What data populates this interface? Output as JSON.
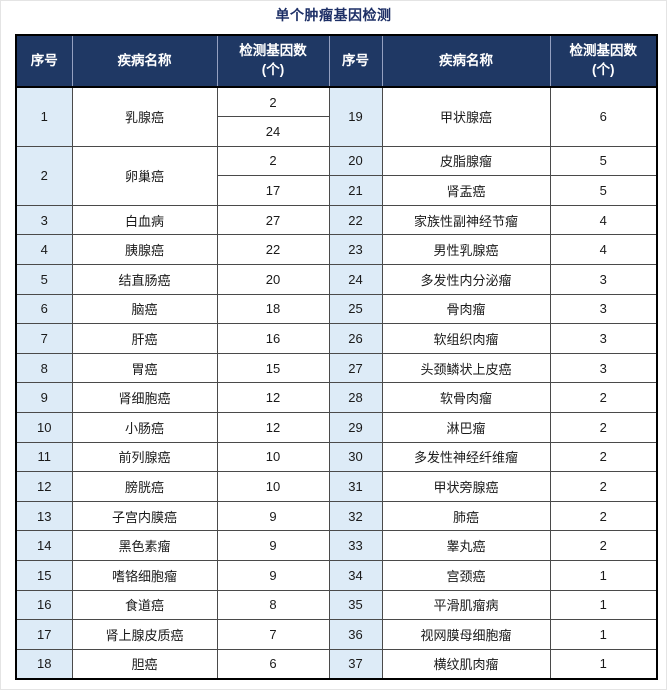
{
  "title": "单个肿瘤基因检测",
  "colors": {
    "page_bg": "#FFFFFF",
    "title_color": "#1D2F66",
    "header_bg": "#1F3864",
    "header_text": "#FFFFFF",
    "header_divider": "#94A0C0",
    "index_col_bg": "#DDEBF7",
    "grid_line": "#4A4A4A",
    "outer_border": "#000000",
    "body_text": "#1A1A1A"
  },
  "table": {
    "headers": {
      "index": "序号",
      "disease": "疾病名称",
      "gene_count": "检测基因数\n(个)"
    },
    "left_rows": [
      {
        "no": "1",
        "disease": "乳腺癌",
        "counts": [
          "2",
          "24"
        ]
      },
      {
        "no": "2",
        "disease": "卵巢癌",
        "counts": [
          "2",
          "17"
        ]
      },
      {
        "no": "3",
        "disease": "白血病",
        "counts": [
          "27"
        ]
      },
      {
        "no": "4",
        "disease": "胰腺癌",
        "counts": [
          "22"
        ]
      },
      {
        "no": "5",
        "disease": "结直肠癌",
        "counts": [
          "20"
        ]
      },
      {
        "no": "6",
        "disease": "脑癌",
        "counts": [
          "18"
        ]
      },
      {
        "no": "7",
        "disease": "肝癌",
        "counts": [
          "16"
        ]
      },
      {
        "no": "8",
        "disease": "胃癌",
        "counts": [
          "15"
        ]
      },
      {
        "no": "9",
        "disease": "肾细胞癌",
        "counts": [
          "12"
        ]
      },
      {
        "no": "10",
        "disease": "小肠癌",
        "counts": [
          "12"
        ]
      },
      {
        "no": "11",
        "disease": "前列腺癌",
        "counts": [
          "10"
        ]
      },
      {
        "no": "12",
        "disease": "膀胱癌",
        "counts": [
          "10"
        ]
      },
      {
        "no": "13",
        "disease": "子宫内膜癌",
        "counts": [
          "9"
        ]
      },
      {
        "no": "14",
        "disease": "黑色素瘤",
        "counts": [
          "9"
        ]
      },
      {
        "no": "15",
        "disease": "嗜铬细胞瘤",
        "counts": [
          "9"
        ]
      },
      {
        "no": "16",
        "disease": "食道癌",
        "counts": [
          "8"
        ]
      },
      {
        "no": "17",
        "disease": "肾上腺皮质癌",
        "counts": [
          "7"
        ]
      },
      {
        "no": "18",
        "disease": "胆癌",
        "counts": [
          "6"
        ]
      }
    ],
    "right_rows": [
      {
        "no": "19",
        "disease": "甲状腺癌",
        "counts": [
          "6"
        ],
        "height": 2
      },
      {
        "no": "20",
        "disease": "皮脂腺瘤",
        "counts": [
          "5"
        ]
      },
      {
        "no": "21",
        "disease": "肾盂癌",
        "counts": [
          "5"
        ]
      },
      {
        "no": "22",
        "disease": "家族性副神经节瘤",
        "counts": [
          "4"
        ]
      },
      {
        "no": "23",
        "disease": "男性乳腺癌",
        "counts": [
          "4"
        ]
      },
      {
        "no": "24",
        "disease": "多发性内分泌瘤",
        "counts": [
          "3"
        ]
      },
      {
        "no": "25",
        "disease": "骨肉瘤",
        "counts": [
          "3"
        ]
      },
      {
        "no": "26",
        "disease": "软组织肉瘤",
        "counts": [
          "3"
        ]
      },
      {
        "no": "27",
        "disease": "头颈鳞状上皮癌",
        "counts": [
          "3"
        ]
      },
      {
        "no": "28",
        "disease": "软骨肉瘤",
        "counts": [
          "2"
        ]
      },
      {
        "no": "29",
        "disease": "淋巴瘤",
        "counts": [
          "2"
        ]
      },
      {
        "no": "30",
        "disease": "多发性神经纤维瘤",
        "counts": [
          "2"
        ]
      },
      {
        "no": "31",
        "disease": "甲状旁腺癌",
        "counts": [
          "2"
        ]
      },
      {
        "no": "32",
        "disease": "肺癌",
        "counts": [
          "2"
        ]
      },
      {
        "no": "33",
        "disease": "睾丸癌",
        "counts": [
          "2"
        ]
      },
      {
        "no": "34",
        "disease": "宫颈癌",
        "counts": [
          "1"
        ]
      },
      {
        "no": "35",
        "disease": "平滑肌瘤病",
        "counts": [
          "1"
        ]
      },
      {
        "no": "36",
        "disease": "视网膜母细胞瘤",
        "counts": [
          "1"
        ]
      },
      {
        "no": "37",
        "disease": "横纹肌肉瘤",
        "counts": [
          "1"
        ]
      }
    ]
  }
}
